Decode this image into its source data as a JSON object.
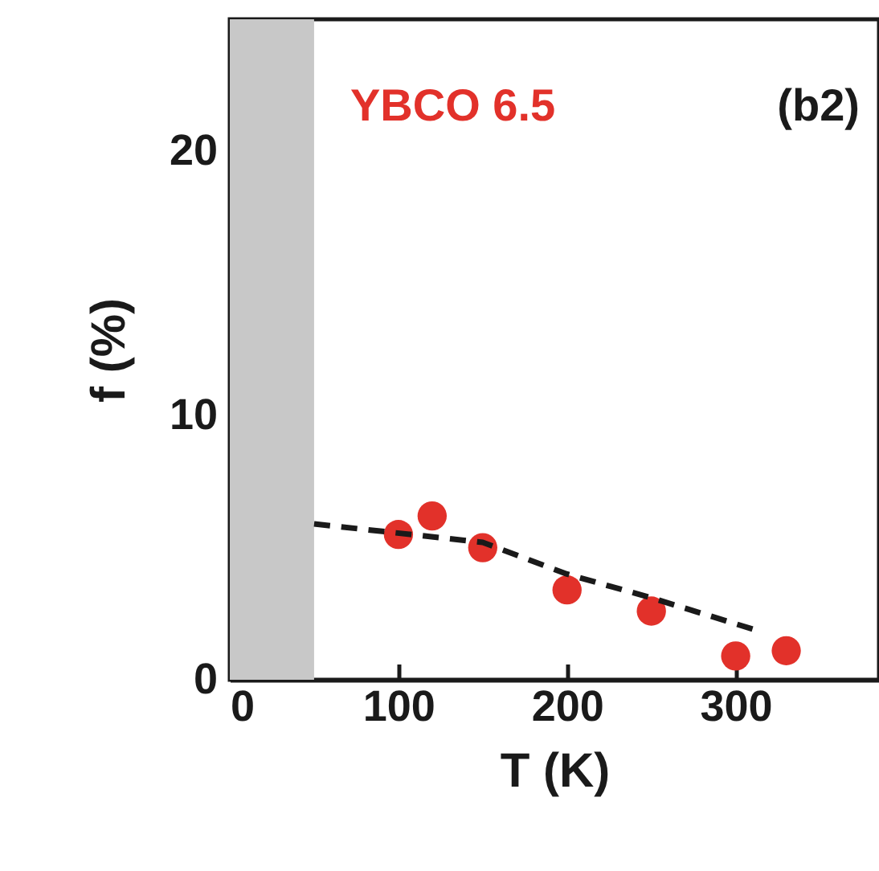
{
  "chart_data": {
    "type": "scatter",
    "xlabel": "T (K)",
    "ylabel": "f (%)",
    "annotations": [
      "(b2)"
    ],
    "xlim": [
      0,
      385
    ],
    "ylim": [
      0,
      25
    ],
    "xticks": [
      0,
      100,
      200,
      300
    ],
    "yticks": [
      0,
      10,
      20
    ],
    "grid": false,
    "marker": "circle",
    "bands": [
      {
        "axis": "x",
        "from": 0,
        "to": 50,
        "color": "#c8c8c8"
      }
    ],
    "series": [
      {
        "name": "YBCO 6.5",
        "color": "#e2312a",
        "x": [
          100,
          120,
          150,
          200,
          250,
          300,
          330
        ],
        "values": [
          5.5,
          6.2,
          5.0,
          3.4,
          2.6,
          0.9,
          1.1
        ]
      },
      {
        "type": "line",
        "color": "#1a1a1a",
        "line_style": "dashed",
        "marker": "none",
        "x": [
          50,
          150,
          200,
          250,
          311
        ],
        "values": [
          5.9,
          5.2,
          4.0,
          3.1,
          1.9
        ]
      }
    ]
  }
}
